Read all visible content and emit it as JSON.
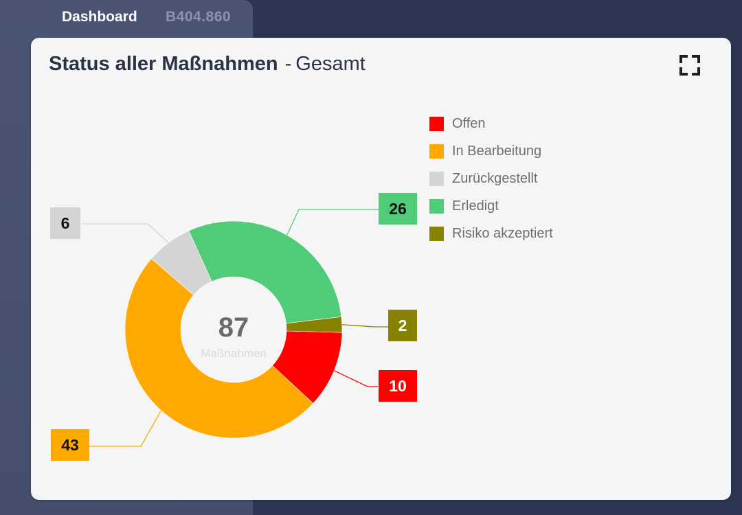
{
  "tabs": {
    "dashboard": "Dashboard",
    "record_id": "B404.860"
  },
  "card": {
    "title": "Status aller Maßnahmen",
    "separator": "-",
    "subtitle": "Gesamt",
    "expand_icon": "fullscreen-icon"
  },
  "chart_data": {
    "type": "pie",
    "title": "",
    "center_total": "87",
    "center_label": "Maßnahmen",
    "slices": [
      {
        "name": "Offen",
        "value": 10,
        "color": "#fe0000"
      },
      {
        "name": "In Bearbeitung",
        "value": 43,
        "color": "#fea800"
      },
      {
        "name": "Zurückgestellt",
        "value": 6,
        "color": "#d4d4d4"
      },
      {
        "name": "Erledigt",
        "value": 26,
        "color": "#50cb78"
      },
      {
        "name": "Risiko akzeptiert",
        "value": 2,
        "color": "#878300"
      }
    ],
    "legend_position": "top-right"
  }
}
